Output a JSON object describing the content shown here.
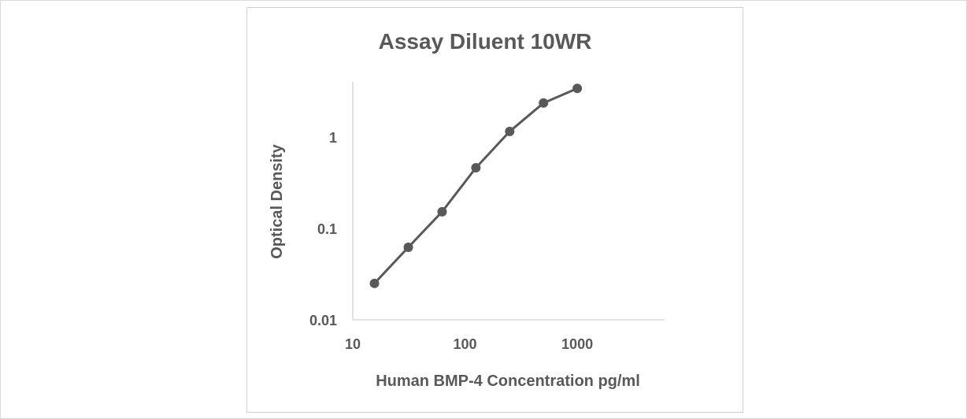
{
  "chart_data": {
    "type": "line",
    "title": "Assay Diluent 10WR",
    "xlabel": "Human BMP-4 Concentration pg/ml",
    "ylabel": "Optical Density",
    "x_scale": "log",
    "y_scale": "log",
    "xlim": [
      10,
      6000
    ],
    "ylim": [
      0.01,
      4
    ],
    "x_ticks": [
      10,
      100,
      1000
    ],
    "x_tick_labels": [
      "10",
      "100",
      "1000"
    ],
    "y_ticks": [
      0.01,
      0.1,
      1
    ],
    "y_tick_labels": [
      "0.01",
      "0.1",
      "1"
    ],
    "grid": false,
    "legend": "none",
    "series": [
      {
        "x": [
          15.6,
          31.25,
          62.5,
          125,
          250,
          500,
          1000
        ],
        "y": [
          0.025,
          0.062,
          0.152,
          0.46,
          1.15,
          2.35,
          3.4
        ]
      }
    ],
    "colors": {
      "series": "#595959",
      "axis": "#d9d9d9",
      "text": "#595959"
    }
  }
}
